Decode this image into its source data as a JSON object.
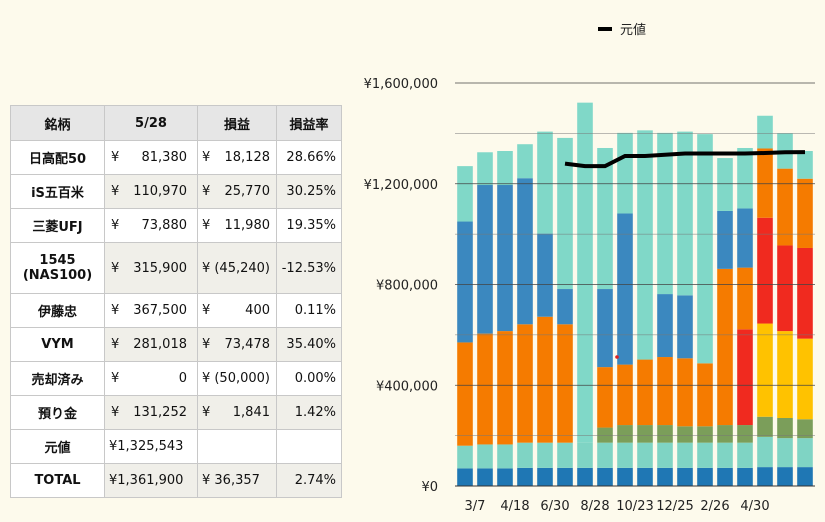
{
  "table": {
    "headers": [
      "銘柄",
      "5/28",
      "損益",
      "損益率"
    ],
    "rows": [
      {
        "name": "日高配50",
        "name2": "",
        "value": "81,380",
        "pl": "18,128",
        "rate": "28.66%"
      },
      {
        "name": "iS五百米",
        "name2": "",
        "value": "110,970",
        "pl": "25,770",
        "rate": "30.25%"
      },
      {
        "name": "三菱UFJ",
        "name2": "",
        "value": "73,880",
        "pl": "11,980",
        "rate": "19.35%"
      },
      {
        "name": "1545",
        "name2": "(NAS100)",
        "value": "315,900",
        "pl": "(45,240)",
        "rate": "-12.53%"
      },
      {
        "name": "伊藤忠",
        "name2": "",
        "value": "367,500",
        "pl": "400",
        "rate": "0.11%"
      },
      {
        "name": "VYM",
        "name2": "",
        "value": "281,018",
        "pl": "73,478",
        "rate": "35.40%"
      },
      {
        "name": "売却済み",
        "name2": "",
        "value": "0",
        "pl": "(50,000)",
        "rate": "0.00%"
      },
      {
        "name": "預り金",
        "name2": "",
        "value": "131,252",
        "pl": "1,841",
        "rate": "1.42%"
      }
    ],
    "motone": {
      "name": "元値",
      "value": "¥1,325,543"
    },
    "total": {
      "name": "TOTAL",
      "value": "¥1,361,900",
      "pl": "¥ 36,357",
      "rate": "2.74%"
    },
    "yen": "¥"
  },
  "chart_data": {
    "type": "bar",
    "stacked": true,
    "legend": {
      "label": "元値",
      "placement": "top"
    },
    "ylim": [
      0,
      1600000
    ],
    "yticks": [
      "¥0",
      "¥400,000",
      "¥800,000",
      "¥1,200,000",
      "¥1,600,000"
    ],
    "xtick_labels": [
      "3/7",
      "4/18",
      "6/30",
      "8/28",
      "10/23",
      "12/25",
      "2/26",
      "4/30"
    ],
    "categories": 18,
    "series": [
      {
        "color": "#1f77b4",
        "values": [
          70000,
          70000,
          70000,
          72000,
          72000,
          72000,
          72000,
          72000,
          72000,
          72000,
          72000,
          72000,
          72000,
          72000,
          72000,
          75000,
          75000,
          75000
        ]
      },
      {
        "color": "#7fd4c4",
        "values": [
          90000,
          95000,
          95000,
          100000,
          100000,
          100000,
          100000,
          100000,
          100000,
          100000,
          100000,
          100000,
          100000,
          100000,
          100000,
          120000,
          115000,
          115000
        ]
      },
      {
        "color": "#7b9e5a",
        "values": [
          0,
          0,
          0,
          0,
          0,
          0,
          0,
          60000,
          70000,
          70000,
          70000,
          65000,
          65000,
          70000,
          70000,
          80000,
          80000,
          75000
        ]
      },
      {
        "color": "#ffc200",
        "values": [
          0,
          0,
          0,
          0,
          0,
          0,
          0,
          0,
          0,
          0,
          0,
          0,
          0,
          0,
          0,
          370000,
          345000,
          320000
        ]
      },
      {
        "color": "#f02a1f",
        "values": [
          0,
          0,
          0,
          0,
          0,
          0,
          0,
          0,
          0,
          0,
          0,
          0,
          0,
          0,
          380000,
          420000,
          340000,
          360000
        ]
      },
      {
        "color": "#f57b00",
        "values": [
          410000,
          440000,
          450000,
          470000,
          500000,
          470000,
          0,
          240000,
          240000,
          260000,
          270000,
          270000,
          250000,
          0,
          0,
          0,
          0,
          0
        ]
      },
      {
        "color": "#f57b00",
        "values": [
          0,
          0,
          0,
          0,
          0,
          0,
          0,
          0,
          0,
          0,
          0,
          0,
          0,
          620000,
          245000,
          275000,
          305000,
          275000
        ]
      },
      {
        "color": "#3b88bf",
        "values": [
          480000,
          590000,
          580000,
          580000,
          330000,
          140000,
          0,
          310000,
          600000,
          0,
          250000,
          250000,
          0,
          0,
          0,
          0,
          0,
          0
        ]
      },
      {
        "color": "#3b88bf",
        "values": [
          0,
          0,
          0,
          0,
          0,
          0,
          0,
          0,
          0,
          0,
          0,
          0,
          0,
          230000,
          235000,
          0,
          0,
          0
        ]
      },
      {
        "color": "#80d8c8",
        "values": [
          220000,
          130000,
          135000,
          135000,
          405000,
          600000,
          1350000,
          560000,
          320000,
          910000,
          640000,
          650000,
          910000,
          0,
          0,
          0,
          0,
          0
        ]
      },
      {
        "color": "#80d8c8",
        "values": [
          0,
          0,
          0,
          0,
          0,
          0,
          0,
          0,
          0,
          0,
          0,
          0,
          0,
          210000,
          240000,
          130000,
          140000,
          110000
        ]
      }
    ],
    "line": {
      "name": "元値",
      "color": "#000000",
      "values": [
        null,
        null,
        null,
        null,
        null,
        1280000,
        1270000,
        1270000,
        1310000,
        1310000,
        1315000,
        1320000,
        1320000,
        1320000,
        1320000,
        1322000,
        1325000,
        1325543
      ]
    }
  }
}
